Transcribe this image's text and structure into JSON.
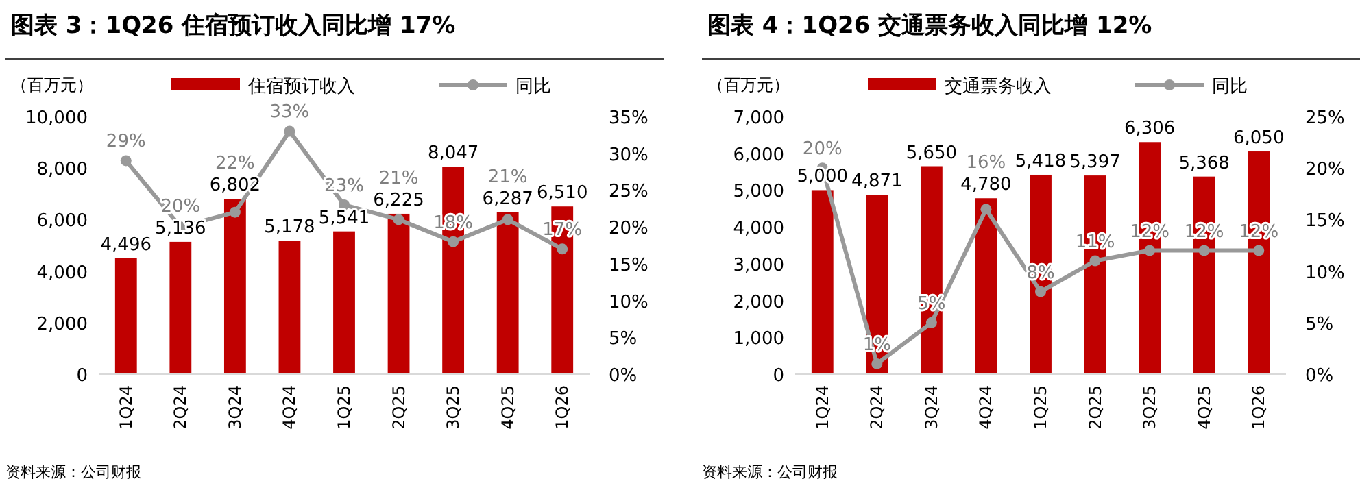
{
  "chart_data": [
    {
      "type": "bar",
      "title": "图表 3：1Q26 住宿预订收入同比增 17%",
      "ylabel": "（百万元）",
      "legend": "top",
      "categories": [
        "1Q24",
        "2Q24",
        "3Q24",
        "4Q24",
        "1Q25",
        "2Q25",
        "3Q25",
        "4Q25",
        "1Q26"
      ],
      "series": [
        {
          "name": "住宿预订收入",
          "color": "#c00000",
          "values": [
            4496,
            5136,
            6802,
            5178,
            5541,
            6225,
            8047,
            6287,
            6510
          ],
          "value_labels": [
            "4,496",
            "5,136",
            "6,802",
            "5,178",
            "5,541",
            "6,225",
            "8,047",
            "6,287",
            "6,510"
          ]
        },
        {
          "name": "同比",
          "type": "line",
          "axis": "y2",
          "color": "#999999",
          "marker": "circle",
          "values": [
            29,
            20,
            22,
            33,
            23,
            21,
            18,
            21,
            17
          ],
          "value_labels": [
            "29%",
            "20%",
            "22%",
            "33%",
            "23%",
            "21%",
            "18%",
            "21%",
            "17%"
          ]
        }
      ],
      "ylim": [
        0,
        10000
      ],
      "yticks": [
        0,
        {
          "value": 2000,
          "label": "2,000"
        },
        {
          "value": 4000,
          "label": "4,000"
        },
        {
          "value": 6000,
          "label": "6,000"
        },
        {
          "value": 8000,
          "label": "8,000"
        },
        {
          "value": 10000,
          "label": "10,000"
        }
      ],
      "y2lim": [
        0,
        35
      ],
      "y2ticks": [
        {
          "value": 0,
          "label": "0%"
        },
        {
          "value": 5,
          "label": "5%"
        },
        {
          "value": 10,
          "label": "10%"
        },
        {
          "value": 15,
          "label": "15%"
        },
        {
          "value": 20,
          "label": "20%"
        },
        {
          "value": 25,
          "label": "25%"
        },
        {
          "value": 30,
          "label": "30%"
        },
        {
          "value": 35,
          "label": "35%"
        }
      ],
      "annotations": [
        "资料来源：公司财报"
      ]
    },
    {
      "type": "bar",
      "title": "图表 4：1Q26 交通票务收入同比增 12%",
      "ylabel": "（百万元）",
      "legend": "top",
      "categories": [
        "1Q24",
        "2Q24",
        "3Q24",
        "4Q24",
        "1Q25",
        "2Q25",
        "3Q25",
        "4Q25",
        "1Q26"
      ],
      "series": [
        {
          "name": "交通票务收入",
          "color": "#c00000",
          "values": [
            5000,
            4871,
            5650,
            4780,
            5418,
            5397,
            6306,
            5368,
            6050
          ],
          "value_labels": [
            "5,000",
            "4,871",
            "5,650",
            "4,780",
            "5,418",
            "5,397",
            "6,306",
            "5,368",
            "6,050"
          ]
        },
        {
          "name": "同比",
          "type": "line",
          "axis": "y2",
          "color": "#999999",
          "marker": "circle",
          "values": [
            20,
            1,
            5,
            16,
            8,
            11,
            12,
            12,
            12
          ],
          "value_labels": [
            "20%",
            "1%",
            "5%",
            "16%",
            "8%",
            "11%",
            "12%",
            "12%",
            "12%"
          ]
        }
      ],
      "ylim": [
        0,
        7000
      ],
      "yticks": [
        0,
        {
          "value": 1000,
          "label": "1,000"
        },
        {
          "value": 2000,
          "label": "2,000"
        },
        {
          "value": 3000,
          "label": "3,000"
        },
        {
          "value": 4000,
          "label": "4,000"
        },
        {
          "value": 5000,
          "label": "5,000"
        },
        {
          "value": 6000,
          "label": "6,000"
        },
        {
          "value": 7000,
          "label": "7,000"
        }
      ],
      "y2lim": [
        0,
        25
      ],
      "y2ticks": [
        {
          "value": 0,
          "label": "0%"
        },
        {
          "value": 5,
          "label": "5%"
        },
        {
          "value": 10,
          "label": "10%"
        },
        {
          "value": 15,
          "label": "15%"
        },
        {
          "value": 20,
          "label": "20%"
        },
        {
          "value": 25,
          "label": "25%"
        }
      ],
      "annotations": [
        "资料来源：公司财报"
      ]
    }
  ]
}
